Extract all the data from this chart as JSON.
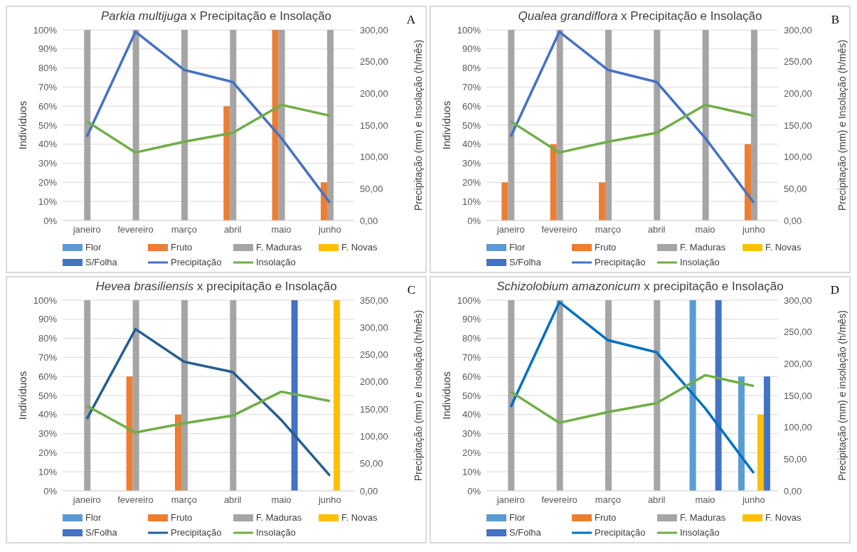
{
  "chart_data": [
    {
      "type": "bar",
      "title": "Parkia multijuga x Precipitação e Insolação",
      "ylabel": "Indivíduos",
      "y2label": "Precipitação (mm) e Insolação (h/mês)",
      "annotations": [
        "A"
      ],
      "categories": [
        "janeiro",
        "fevereiro",
        "março",
        "abril",
        "maio",
        "junho"
      ],
      "series": [
        {
          "name": "Flor",
          "color": "#5b9bd5",
          "values": [
            0,
            0,
            0,
            0,
            0,
            0
          ]
        },
        {
          "name": "Fruto",
          "color": "#ed7d31",
          "values": [
            0,
            0,
            0,
            60,
            100,
            20
          ]
        },
        {
          "name": "F. Maduras",
          "color": "#a5a5a5",
          "values": [
            100,
            100,
            100,
            100,
            100,
            100
          ]
        },
        {
          "name": "F. Novas",
          "color": "#ffc000",
          "values": [
            0,
            0,
            0,
            0,
            0,
            0
          ]
        },
        {
          "name": "S/Folha",
          "color": "#4472c4",
          "values": [
            0,
            0,
            0,
            0,
            0,
            0
          ]
        },
        {
          "name": "Precipitação",
          "type": "line",
          "axis": "y2",
          "color": "#4472c4",
          "values": [
            132,
            297,
            237,
            218,
            130,
            28
          ]
        },
        {
          "name": "Insolação",
          "type": "line",
          "axis": "y2",
          "color": "#70ad47",
          "values": [
            156,
            107,
            124,
            138,
            182,
            165
          ]
        }
      ],
      "ylim": [
        0,
        100
      ],
      "yticks": [
        {
          "value": 0,
          "label": "0%"
        },
        {
          "value": 10,
          "label": "10%"
        },
        {
          "value": 20,
          "label": "20%"
        },
        {
          "value": 30,
          "label": "30%"
        },
        {
          "value": 40,
          "label": "40%"
        },
        {
          "value": 50,
          "label": "50%"
        },
        {
          "value": 60,
          "label": "60%"
        },
        {
          "value": 70,
          "label": "70%"
        },
        {
          "value": 80,
          "label": "80%"
        },
        {
          "value": 90,
          "label": "90%"
        },
        {
          "value": 100,
          "label": "100%"
        }
      ],
      "y2lim": [
        0,
        300
      ],
      "y2ticks": [
        {
          "value": 0,
          "label": "0,00"
        },
        {
          "value": 50,
          "label": "50,00"
        },
        {
          "value": 100,
          "label": "100,00"
        },
        {
          "value": 150,
          "label": "150,00"
        },
        {
          "value": 200,
          "label": "200,00"
        },
        {
          "value": 250,
          "label": "250,00"
        },
        {
          "value": 300,
          "label": "300,00"
        }
      ],
      "grid": "y",
      "legend": "bottom"
    },
    {
      "type": "bar",
      "title": "Qualea grandiflora x Precipitação e Insolação",
      "ylabel": "Indivíduos",
      "y2label": "Precipitação (mm) e Insolação (h/mês)",
      "annotations": [
        "B"
      ],
      "categories": [
        "janeiro",
        "fevereiro",
        "março",
        "abril",
        "maio",
        "junho"
      ],
      "series": [
        {
          "name": "Flor",
          "color": "#5b9bd5",
          "values": [
            0,
            0,
            0,
            0,
            0,
            0
          ]
        },
        {
          "name": "Fruto",
          "color": "#ed7d31",
          "values": [
            20,
            40,
            20,
            0,
            0,
            40
          ]
        },
        {
          "name": "F. Maduras",
          "color": "#a5a5a5",
          "values": [
            100,
            100,
            100,
            100,
            100,
            100
          ]
        },
        {
          "name": "F. Novas",
          "color": "#ffc000",
          "values": [
            0,
            0,
            0,
            0,
            0,
            0
          ]
        },
        {
          "name": "S/Folha",
          "color": "#4472c4",
          "values": [
            0,
            0,
            0,
            0,
            0,
            0
          ]
        },
        {
          "name": "Precipitação",
          "type": "line",
          "axis": "y2",
          "color": "#4472c4",
          "values": [
            132,
            297,
            237,
            218,
            130,
            28
          ]
        },
        {
          "name": "Insolação",
          "type": "line",
          "axis": "y2",
          "color": "#70ad47",
          "values": [
            156,
            107,
            124,
            138,
            182,
            165
          ]
        }
      ],
      "ylim": [
        0,
        100
      ],
      "yticks": [
        {
          "value": 0,
          "label": "0%"
        },
        {
          "value": 10,
          "label": "10%"
        },
        {
          "value": 20,
          "label": "20%"
        },
        {
          "value": 30,
          "label": "30%"
        },
        {
          "value": 40,
          "label": "40%"
        },
        {
          "value": 50,
          "label": "50%"
        },
        {
          "value": 60,
          "label": "60%"
        },
        {
          "value": 70,
          "label": "70%"
        },
        {
          "value": 80,
          "label": "80%"
        },
        {
          "value": 90,
          "label": "90%"
        },
        {
          "value": 100,
          "label": "100%"
        }
      ],
      "y2lim": [
        0,
        300
      ],
      "y2ticks": [
        {
          "value": 0,
          "label": "0,00"
        },
        {
          "value": 50,
          "label": "50,00"
        },
        {
          "value": 100,
          "label": "100,00"
        },
        {
          "value": 150,
          "label": "150,00"
        },
        {
          "value": 200,
          "label": "200,00"
        },
        {
          "value": 250,
          "label": "250,00"
        },
        {
          "value": 300,
          "label": "300,00"
        }
      ],
      "grid": "y",
      "legend": "bottom"
    },
    {
      "type": "bar",
      "title": "Hevea brasiliensis x precipitação e Insolação",
      "ylabel": "Indivíduos",
      "y2label": "Precipitação (mm) e Insolação (h/mês)",
      "annotations": [
        "C"
      ],
      "categories": [
        "janeiro",
        "fevereiro",
        "março",
        "abril",
        "maio",
        "junho"
      ],
      "series": [
        {
          "name": "Flor",
          "color": "#5b9bd5",
          "values": [
            0,
            0,
            0,
            0,
            0,
            0
          ]
        },
        {
          "name": "Fruto",
          "color": "#ed7d31",
          "values": [
            0,
            60,
            40,
            0,
            0,
            0
          ]
        },
        {
          "name": "F. Maduras",
          "color": "#a5a5a5",
          "values": [
            100,
            100,
            100,
            100,
            0,
            0
          ]
        },
        {
          "name": "F. Novas",
          "color": "#ffc000",
          "values": [
            0,
            0,
            0,
            0,
            0,
            100
          ]
        },
        {
          "name": "S/Folha",
          "color": "#4472c4",
          "values": [
            0,
            0,
            0,
            0,
            100,
            0
          ]
        },
        {
          "name": "Precipitação",
          "type": "line",
          "axis": "y2",
          "color": "#255e91",
          "values": [
            132,
            297,
            237,
            218,
            130,
            28
          ]
        },
        {
          "name": "Insolação",
          "type": "line",
          "axis": "y2",
          "color": "#70ad47",
          "values": [
            156,
            107,
            124,
            138,
            182,
            165
          ]
        }
      ],
      "ylim": [
        0,
        100
      ],
      "yticks": [
        {
          "value": 0,
          "label": "0%"
        },
        {
          "value": 10,
          "label": "10%"
        },
        {
          "value": 20,
          "label": "20%"
        },
        {
          "value": 30,
          "label": "30%"
        },
        {
          "value": 40,
          "label": "40%"
        },
        {
          "value": 50,
          "label": "50%"
        },
        {
          "value": 60,
          "label": "60%"
        },
        {
          "value": 70,
          "label": "70%"
        },
        {
          "value": 80,
          "label": "80%"
        },
        {
          "value": 90,
          "label": "90%"
        },
        {
          "value": 100,
          "label": "100%"
        }
      ],
      "y2lim": [
        0,
        350
      ],
      "y2ticks": [
        {
          "value": 0,
          "label": "0,00"
        },
        {
          "value": 50,
          "label": "50,00"
        },
        {
          "value": 100,
          "label": "100,00"
        },
        {
          "value": 150,
          "label": "150,00"
        },
        {
          "value": 200,
          "label": "200,00"
        },
        {
          "value": 250,
          "label": "250,00"
        },
        {
          "value": 300,
          "label": "300,00"
        },
        {
          "value": 350,
          "label": "350,00"
        }
      ],
      "grid": "y",
      "legend": "bottom"
    },
    {
      "type": "bar",
      "title": "Schizolobium amazonicum x precipitação e Insolação",
      "ylabel": "Individuos",
      "y2label": "Precipitação (mm) e insolação (h/mês)",
      "annotations": [
        "D"
      ],
      "categories": [
        "janeiro",
        "fevereiro",
        "março",
        "abril",
        "maio",
        "junho"
      ],
      "series": [
        {
          "name": "Flor",
          "color": "#5b9bd5",
          "values": [
            0,
            0,
            0,
            0,
            100,
            60
          ]
        },
        {
          "name": "Fruto",
          "color": "#ed7d31",
          "values": [
            0,
            0,
            0,
            0,
            0,
            0
          ]
        },
        {
          "name": "F. Maduras",
          "color": "#a5a5a5",
          "values": [
            100,
            100,
            100,
            100,
            0,
            0
          ]
        },
        {
          "name": "F. Novas",
          "color": "#ffc000",
          "values": [
            0,
            0,
            0,
            0,
            0,
            40
          ]
        },
        {
          "name": "S/Folha",
          "color": "#4472c4",
          "values": [
            0,
            0,
            0,
            0,
            100,
            60
          ]
        },
        {
          "name": "Precipitação",
          "type": "line",
          "axis": "y2",
          "color": "#0070c0",
          "values": [
            132,
            297,
            237,
            218,
            130,
            28
          ]
        },
        {
          "name": "Insolação",
          "type": "line",
          "axis": "y2",
          "color": "#70ad47",
          "values": [
            156,
            107,
            124,
            138,
            182,
            165
          ]
        }
      ],
      "ylim": [
        0,
        100
      ],
      "yticks": [
        {
          "value": 0,
          "label": "0%"
        },
        {
          "value": 10,
          "label": "10%"
        },
        {
          "value": 20,
          "label": "20%"
        },
        {
          "value": 30,
          "label": "30%"
        },
        {
          "value": 40,
          "label": "40%"
        },
        {
          "value": 50,
          "label": "50%"
        },
        {
          "value": 60,
          "label": "60%"
        },
        {
          "value": 70,
          "label": "70%"
        },
        {
          "value": 80,
          "label": "80%"
        },
        {
          "value": 90,
          "label": "90%"
        },
        {
          "value": 100,
          "label": "100%"
        }
      ],
      "y2lim": [
        0,
        300
      ],
      "y2ticks": [
        {
          "value": 0,
          "label": "0,00"
        },
        {
          "value": 50,
          "label": "50,00"
        },
        {
          "value": 100,
          "label": "100,00"
        },
        {
          "value": 150,
          "label": "150,00"
        },
        {
          "value": 200,
          "label": "200,00"
        },
        {
          "value": 250,
          "label": "250,00"
        },
        {
          "value": 300,
          "label": "300,00"
        }
      ],
      "grid": "y",
      "legend": "bottom"
    }
  ]
}
